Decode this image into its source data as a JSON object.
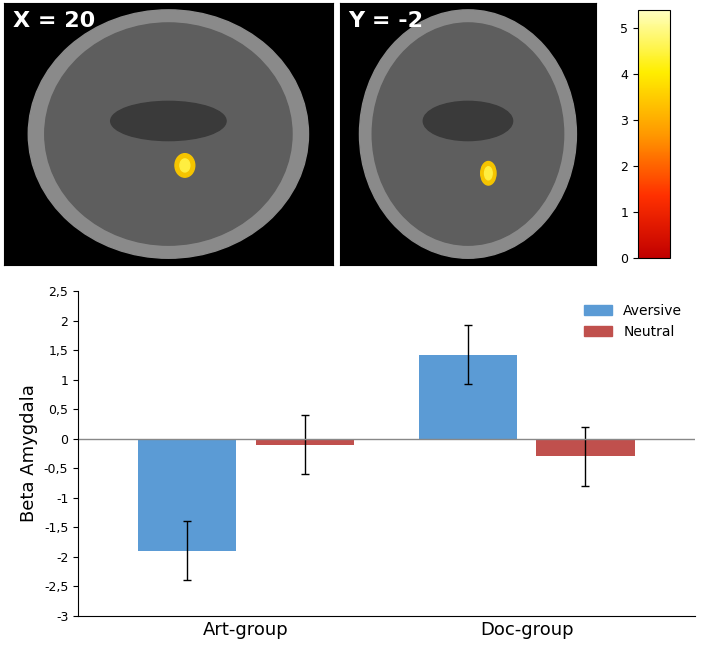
{
  "brain_panels": [
    {
      "label": "X = 20"
    },
    {
      "label": "Y = -2"
    }
  ],
  "colorbar": {
    "range": [
      0,
      5.4
    ],
    "ticks": [
      0,
      1,
      2,
      3,
      4,
      5
    ]
  },
  "chart_data": {
    "type": "bar",
    "y_label": "Beta Amygdala",
    "categories": [
      "Art-group",
      "Doc-group"
    ],
    "series": [
      {
        "name": "Aversive",
        "color": "#5b9bd5",
        "values": [
          -1.9,
          1.42
        ],
        "error": [
          0.5,
          0.5
        ]
      },
      {
        "name": "Neutral",
        "color": "#c0504d",
        "values": [
          -0.1,
          -0.3
        ],
        "error": [
          0.5,
          0.5
        ]
      }
    ],
    "ylim": [
      -3,
      2.5
    ],
    "yticks": [
      -3,
      {
        "value": -2.5,
        "label": "-2,5"
      },
      -2,
      {
        "value": -1.5,
        "label": "-1,5"
      },
      -1,
      {
        "value": -0.5,
        "label": "-0,5"
      },
      0,
      {
        "value": 0.5,
        "label": "0,5"
      },
      1,
      {
        "value": 1.5,
        "label": "1,5"
      },
      2,
      {
        "value": 2.5,
        "label": "2,5"
      }
    ],
    "grid": false,
    "legend": "upper right"
  }
}
